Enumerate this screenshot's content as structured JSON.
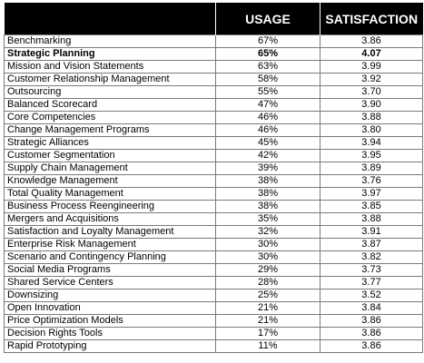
{
  "chart_data": {
    "type": "table",
    "columns": [
      "",
      "USAGE",
      "SATISFACTION"
    ],
    "rows": [
      {
        "name": "Benchmarking",
        "usage": "67%",
        "satisfaction": "3.86",
        "bold": false
      },
      {
        "name": "Strategic Planning",
        "usage": "65%",
        "satisfaction": "4.07",
        "bold": true
      },
      {
        "name": "Mission and Vision Statements",
        "usage": "63%",
        "satisfaction": "3.99",
        "bold": false
      },
      {
        "name": "Customer Relationship Management",
        "usage": "58%",
        "satisfaction": "3.92",
        "bold": false
      },
      {
        "name": "Outsourcing",
        "usage": "55%",
        "satisfaction": "3.70",
        "bold": false
      },
      {
        "name": "Balanced Scorecard",
        "usage": "47%",
        "satisfaction": "3.90",
        "bold": false
      },
      {
        "name": "Core Competencies",
        "usage": "46%",
        "satisfaction": "3.88",
        "bold": false
      },
      {
        "name": "Change Management Programs",
        "usage": "46%",
        "satisfaction": "3.80",
        "bold": false
      },
      {
        "name": "Strategic Alliances",
        "usage": "45%",
        "satisfaction": "3.94",
        "bold": false
      },
      {
        "name": "Customer Segmentation",
        "usage": "42%",
        "satisfaction": "3.95",
        "bold": false
      },
      {
        "name": "Supply Chain Management",
        "usage": "39%",
        "satisfaction": "3.89",
        "bold": false
      },
      {
        "name": "Knowledge Management",
        "usage": "38%",
        "satisfaction": "3.76",
        "bold": false
      },
      {
        "name": "Total Quality Management",
        "usage": "38%",
        "satisfaction": "3.97",
        "bold": false
      },
      {
        "name": "Business Process Reengineering",
        "usage": "38%",
        "satisfaction": "3.85",
        "bold": false
      },
      {
        "name": "Mergers and Acquisitions",
        "usage": "35%",
        "satisfaction": "3.88",
        "bold": false
      },
      {
        "name": "Satisfaction and Loyalty Management",
        "usage": "32%",
        "satisfaction": "3.91",
        "bold": false
      },
      {
        "name": "Enterprise Risk Management",
        "usage": "30%",
        "satisfaction": "3.87",
        "bold": false
      },
      {
        "name": "Scenario and Contingency Planning",
        "usage": "30%",
        "satisfaction": "3.82",
        "bold": false
      },
      {
        "name": "Social Media Programs",
        "usage": "29%",
        "satisfaction": "3.73",
        "bold": false
      },
      {
        "name": "Shared Service Centers",
        "usage": "28%",
        "satisfaction": "3.77",
        "bold": false
      },
      {
        "name": "Downsizing",
        "usage": "25%",
        "satisfaction": "3.52",
        "bold": false
      },
      {
        "name": "Open Innovation",
        "usage": "21%",
        "satisfaction": "3.84",
        "bold": false
      },
      {
        "name": "Price Optimization Models",
        "usage": "21%",
        "satisfaction": "3.86",
        "bold": false
      },
      {
        "name": "Decision Rights Tools",
        "usage": "17%",
        "satisfaction": "3.86",
        "bold": false
      },
      {
        "name": "Rapid Prototyping",
        "usage": "11%",
        "satisfaction": "3.86",
        "bold": false
      }
    ]
  },
  "colors": {
    "header_bg": "#000000",
    "header_text": "#ffffff",
    "grid": "#7a7a7a"
  }
}
